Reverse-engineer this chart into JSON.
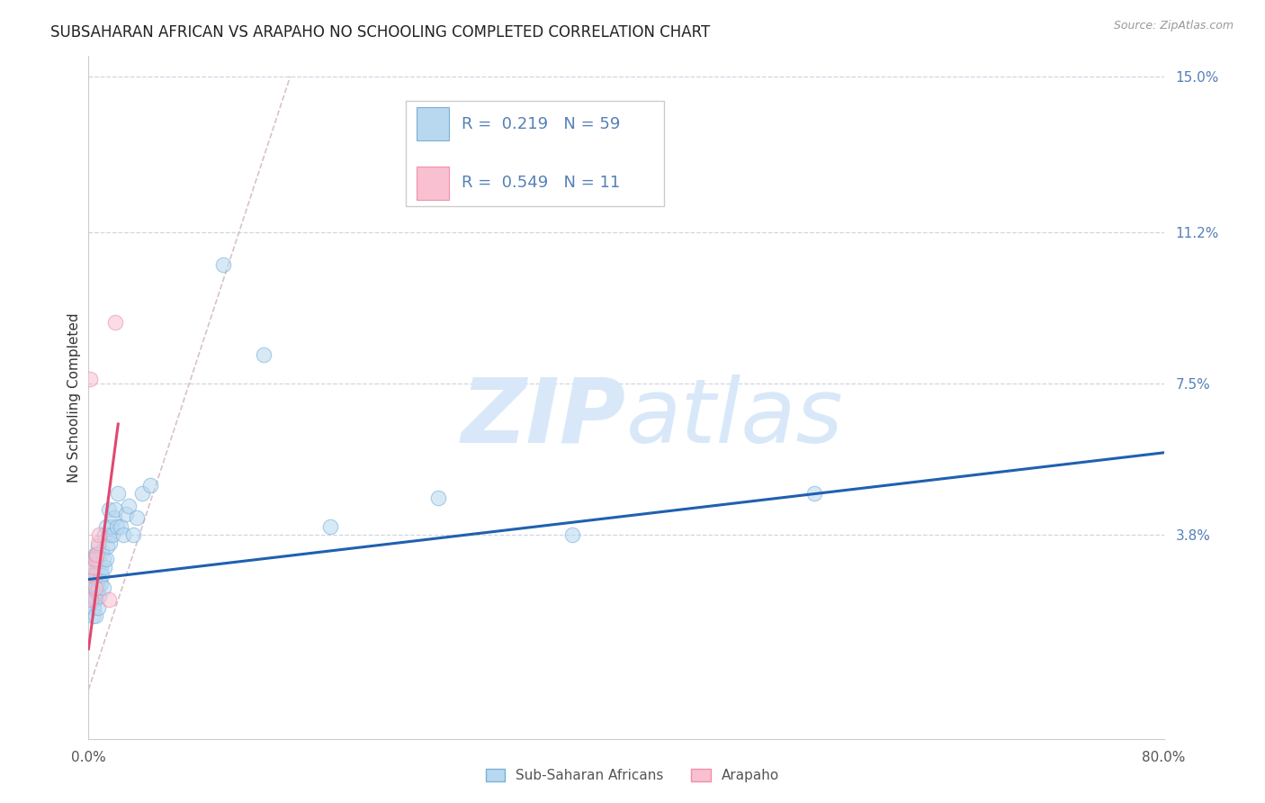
{
  "title": "SUBSAHARAN AFRICAN VS ARAPAHO NO SCHOOLING COMPLETED CORRELATION CHART",
  "source": "Source: ZipAtlas.com",
  "ylabel": "No Schooling Completed",
  "xlim": [
    0.0,
    0.8
  ],
  "ylim": [
    -0.012,
    0.155
  ],
  "y_tick_values": [
    0.038,
    0.075,
    0.112,
    0.15
  ],
  "y_tick_labels": [
    "3.8%",
    "7.5%",
    "11.2%",
    "15.0%"
  ],
  "x_tick_values": [
    0.0,
    0.8
  ],
  "x_tick_labels": [
    "0.0%",
    "80.0%"
  ],
  "legend_r_blue": "0.219",
  "legend_n_blue": "59",
  "legend_r_pink": "0.549",
  "legend_n_pink": "11",
  "blue_scatter_x": [
    0.001,
    0.002,
    0.002,
    0.002,
    0.003,
    0.003,
    0.003,
    0.003,
    0.004,
    0.004,
    0.004,
    0.005,
    0.005,
    0.005,
    0.005,
    0.006,
    0.006,
    0.006,
    0.007,
    0.007,
    0.007,
    0.007,
    0.008,
    0.008,
    0.008,
    0.009,
    0.009,
    0.01,
    0.01,
    0.011,
    0.011,
    0.012,
    0.012,
    0.013,
    0.013,
    0.014,
    0.015,
    0.015,
    0.016,
    0.017,
    0.018,
    0.019,
    0.02,
    0.021,
    0.022,
    0.024,
    0.026,
    0.028,
    0.03,
    0.033,
    0.036,
    0.04,
    0.046,
    0.1,
    0.13,
    0.18,
    0.26,
    0.36,
    0.54
  ],
  "blue_scatter_y": [
    0.022,
    0.025,
    0.028,
    0.032,
    0.018,
    0.022,
    0.026,
    0.03,
    0.02,
    0.026,
    0.032,
    0.018,
    0.022,
    0.028,
    0.033,
    0.024,
    0.028,
    0.033,
    0.02,
    0.025,
    0.03,
    0.035,
    0.023,
    0.027,
    0.032,
    0.026,
    0.03,
    0.028,
    0.034,
    0.025,
    0.032,
    0.03,
    0.038,
    0.032,
    0.04,
    0.035,
    0.038,
    0.044,
    0.036,
    0.04,
    0.038,
    0.042,
    0.044,
    0.04,
    0.048,
    0.04,
    0.038,
    0.043,
    0.045,
    0.038,
    0.042,
    0.048,
    0.05,
    0.104,
    0.082,
    0.04,
    0.047,
    0.038,
    0.048
  ],
  "pink_scatter_x": [
    0.001,
    0.002,
    0.003,
    0.004,
    0.005,
    0.005,
    0.006,
    0.007,
    0.008,
    0.015,
    0.02
  ],
  "pink_scatter_y": [
    0.076,
    0.022,
    0.028,
    0.03,
    0.025,
    0.032,
    0.033,
    0.036,
    0.038,
    0.022,
    0.09
  ],
  "blue_line_x": [
    0.0,
    0.8
  ],
  "blue_line_y": [
    0.027,
    0.058
  ],
  "pink_line_x": [
    0.0,
    0.022
  ],
  "pink_line_y": [
    0.01,
    0.065
  ],
  "diag_line_x": [
    0.0,
    0.15
  ],
  "diag_line_y": [
    0.0,
    0.15
  ],
  "scatter_size": 140,
  "scatter_alpha": 0.55,
  "blue_face": "#b8d8f0",
  "blue_edge": "#7ab0d8",
  "pink_face": "#f8c0d0",
  "pink_edge": "#f090a8",
  "line_blue_color": "#2060b0",
  "line_pink_color": "#e04870",
  "diag_color": "#c8c8d8",
  "grid_color": "#d4d4e4",
  "right_label_color": "#5580b8",
  "watermark_color": "#d8e8f8",
  "bg_color": "#ffffff",
  "title_color": "#222222",
  "source_color": "#999999",
  "ylabel_color": "#333333",
  "xtick_color": "#555555",
  "legend_border_color": "#cccccc",
  "legend_text_color": "#5580b8"
}
